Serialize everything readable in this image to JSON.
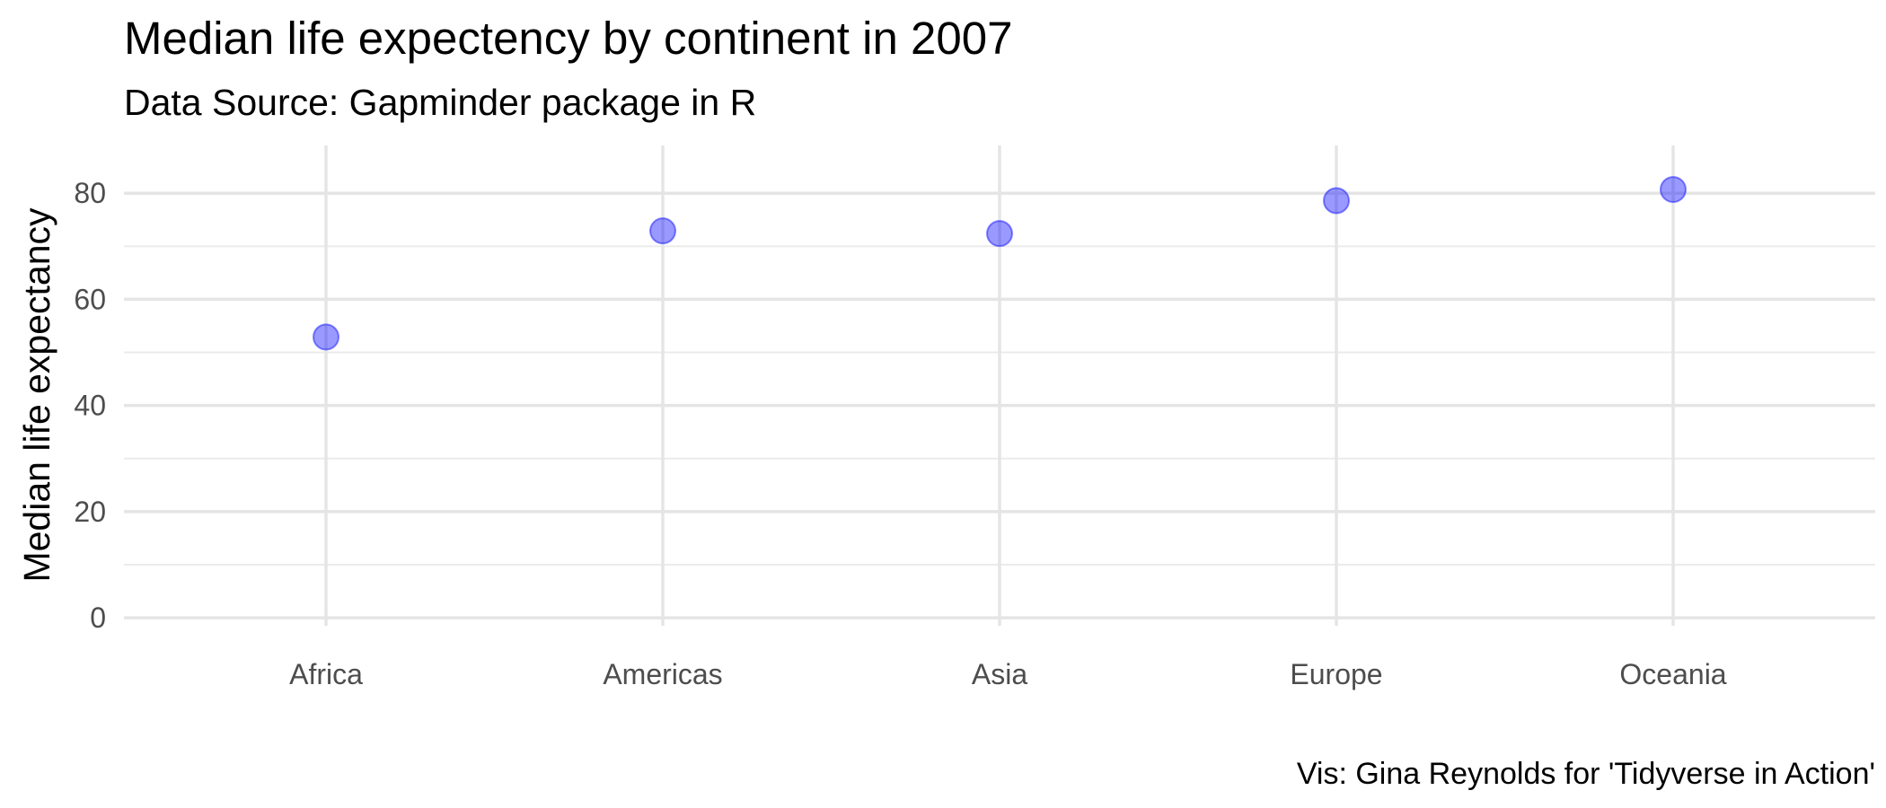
{
  "chart_data": {
    "type": "scatter",
    "title": "Median life expectency by continent in 2007",
    "subtitle": "Data Source: Gapminder package in R",
    "caption": "Vis: Gina Reynolds for 'Tidyverse in Action'",
    "xlabel": "",
    "ylabel": "Median life expectancy",
    "categories": [
      "Africa",
      "Americas",
      "Asia",
      "Europe",
      "Oceania"
    ],
    "values": [
      52.9,
      72.9,
      72.4,
      78.6,
      80.7
    ],
    "ylim": [
      -1.5,
      89
    ],
    "y_ticks": [
      0,
      20,
      40,
      60,
      80
    ],
    "grid": true,
    "point_color": "#0000ff",
    "point_opacity": 0.4
  }
}
